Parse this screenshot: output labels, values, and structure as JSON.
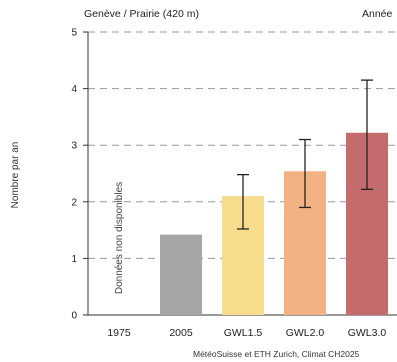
{
  "header": {
    "location": "Genève / Prairie (420 m)",
    "period": "Année"
  },
  "source": "MétéoSuisse et ETH Zurich, Climat CH2025",
  "chart_data": {
    "type": "bar",
    "categories": [
      "1975",
      "2005",
      "GWL1.5",
      "GWL2.0",
      "GWL3.0"
    ],
    "values": [
      null,
      1.42,
      2.1,
      2.54,
      3.22
    ],
    "error_low": [
      null,
      null,
      1.52,
      1.9,
      2.22
    ],
    "error_high": [
      null,
      null,
      2.48,
      3.1,
      4.15
    ],
    "colors": [
      "#ffffff",
      "#a6a6a6",
      "#f8dc8e",
      "#f2b283",
      "#c46b6e"
    ],
    "ylabel": "Nombre par an",
    "ylim": [
      0,
      5
    ],
    "yticks": [
      0,
      1,
      2,
      3,
      4,
      5
    ],
    "grid": true,
    "annotation": "Données non disponibles"
  }
}
